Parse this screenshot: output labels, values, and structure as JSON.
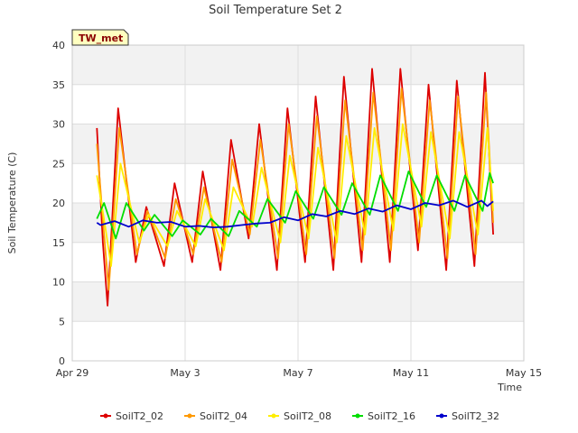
{
  "chart_data": {
    "type": "line",
    "title": "Soil Temperature Set 2",
    "xlabel": "Time",
    "ylabel": "Soil Temperature (C)",
    "site_label": "TW_met",
    "xlim": [
      "2024-04-29",
      "2024-05-15"
    ],
    "ylim": [
      0,
      40
    ],
    "yticks": [
      0,
      5,
      10,
      15,
      20,
      25,
      30,
      35,
      40
    ],
    "xticks": [
      {
        "date": "2024-04-29",
        "label": "Apr 29"
      },
      {
        "date": "2024-05-03",
        "label": "May 3"
      },
      {
        "date": "2024-05-07",
        "label": "May 7"
      },
      {
        "date": "2024-05-11",
        "label": "May 11"
      },
      {
        "date": "2024-05-15",
        "label": "May 15"
      }
    ],
    "grid": true,
    "legend_position": "bottom",
    "series": [
      {
        "name": "SoilT2_02",
        "color": "#dd0000",
        "points": [
          [
            "2024-04-29T21:00",
            29.5
          ],
          [
            "2024-04-30T02:00",
            15.0
          ],
          [
            "2024-04-30T06:00",
            7.0
          ],
          [
            "2024-04-30T15:00",
            32.0
          ],
          [
            "2024-05-01T06:00",
            12.5
          ],
          [
            "2024-05-01T15:00",
            19.5
          ],
          [
            "2024-05-02T06:00",
            12.0
          ],
          [
            "2024-05-02T15:00",
            22.5
          ],
          [
            "2024-05-03T06:00",
            12.5
          ],
          [
            "2024-05-03T15:00",
            24.0
          ],
          [
            "2024-05-04T06:00",
            11.5
          ],
          [
            "2024-05-04T15:00",
            28.0
          ],
          [
            "2024-05-05T06:00",
            15.5
          ],
          [
            "2024-05-05T15:00",
            30.0
          ],
          [
            "2024-05-06T06:00",
            11.5
          ],
          [
            "2024-05-06T15:00",
            32.0
          ],
          [
            "2024-05-07T06:00",
            12.5
          ],
          [
            "2024-05-07T15:00",
            33.5
          ],
          [
            "2024-05-08T06:00",
            11.5
          ],
          [
            "2024-05-08T15:00",
            36.0
          ],
          [
            "2024-05-09T06:00",
            12.5
          ],
          [
            "2024-05-09T15:00",
            37.0
          ],
          [
            "2024-05-10T06:00",
            12.5
          ],
          [
            "2024-05-10T15:00",
            37.0
          ],
          [
            "2024-05-11T06:00",
            14.0
          ],
          [
            "2024-05-11T15:00",
            35.0
          ],
          [
            "2024-05-12T06:00",
            11.5
          ],
          [
            "2024-05-12T15:00",
            35.5
          ],
          [
            "2024-05-13T06:00",
            12.0
          ],
          [
            "2024-05-13T15:00",
            36.5
          ],
          [
            "2024-05-13T22:00",
            16.0
          ]
        ]
      },
      {
        "name": "SoilT2_04",
        "color": "#ff9900",
        "points": [
          [
            "2024-04-29T21:00",
            27.5
          ],
          [
            "2024-04-30T03:00",
            16.0
          ],
          [
            "2024-04-30T07:00",
            9.0
          ],
          [
            "2024-04-30T16:00",
            29.5
          ],
          [
            "2024-05-01T07:00",
            13.5
          ],
          [
            "2024-05-01T16:00",
            19.0
          ],
          [
            "2024-05-02T07:00",
            13.0
          ],
          [
            "2024-05-02T16:00",
            20.5
          ],
          [
            "2024-05-03T07:00",
            13.5
          ],
          [
            "2024-05-03T16:00",
            22.0
          ],
          [
            "2024-05-04T07:00",
            12.5
          ],
          [
            "2024-05-04T16:00",
            25.5
          ],
          [
            "2024-05-05T07:00",
            16.0
          ],
          [
            "2024-05-05T16:00",
            28.0
          ],
          [
            "2024-05-06T07:00",
            13.0
          ],
          [
            "2024-05-06T16:00",
            30.0
          ],
          [
            "2024-05-07T07:00",
            13.5
          ],
          [
            "2024-05-07T16:00",
            31.0
          ],
          [
            "2024-05-08T07:00",
            13.0
          ],
          [
            "2024-05-08T16:00",
            33.0
          ],
          [
            "2024-05-09T07:00",
            14.0
          ],
          [
            "2024-05-09T16:00",
            34.0
          ],
          [
            "2024-05-10T07:00",
            14.0
          ],
          [
            "2024-05-10T16:00",
            34.5
          ],
          [
            "2024-05-11T07:00",
            15.0
          ],
          [
            "2024-05-11T16:00",
            33.0
          ],
          [
            "2024-05-12T07:00",
            13.0
          ],
          [
            "2024-05-12T16:00",
            33.5
          ],
          [
            "2024-05-13T07:00",
            13.5
          ],
          [
            "2024-05-13T16:00",
            34.0
          ],
          [
            "2024-05-13T22:00",
            17.5
          ]
        ]
      },
      {
        "name": "SoilT2_08",
        "color": "#ffee00",
        "points": [
          [
            "2024-04-29T21:00",
            23.5
          ],
          [
            "2024-04-30T04:00",
            17.0
          ],
          [
            "2024-04-30T09:00",
            12.0
          ],
          [
            "2024-04-30T17:00",
            25.0
          ],
          [
            "2024-05-01T09:00",
            15.0
          ],
          [
            "2024-05-01T17:00",
            18.5
          ],
          [
            "2024-05-02T09:00",
            14.5
          ],
          [
            "2024-05-02T17:00",
            19.0
          ],
          [
            "2024-05-03T09:00",
            14.5
          ],
          [
            "2024-05-03T17:00",
            20.5
          ],
          [
            "2024-05-04T09:00",
            14.0
          ],
          [
            "2024-05-04T17:00",
            22.0
          ],
          [
            "2024-05-05T09:00",
            17.0
          ],
          [
            "2024-05-05T17:00",
            24.5
          ],
          [
            "2024-05-06T09:00",
            15.0
          ],
          [
            "2024-05-06T17:00",
            26.0
          ],
          [
            "2024-05-07T09:00",
            15.5
          ],
          [
            "2024-05-07T17:00",
            27.0
          ],
          [
            "2024-05-08T09:00",
            15.0
          ],
          [
            "2024-05-08T17:00",
            28.5
          ],
          [
            "2024-05-09T09:00",
            16.0
          ],
          [
            "2024-05-09T17:00",
            29.5
          ],
          [
            "2024-05-10T09:00",
            16.5
          ],
          [
            "2024-05-10T17:00",
            30.0
          ],
          [
            "2024-05-11T09:00",
            17.0
          ],
          [
            "2024-05-11T17:00",
            29.0
          ],
          [
            "2024-05-12T09:00",
            15.5
          ],
          [
            "2024-05-12T17:00",
            29.0
          ],
          [
            "2024-05-13T09:00",
            16.0
          ],
          [
            "2024-05-13T17:00",
            29.5
          ],
          [
            "2024-05-13T22:00",
            19.0
          ]
        ]
      },
      {
        "name": "SoilT2_16",
        "color": "#00dd00",
        "points": [
          [
            "2024-04-29T21:00",
            18.0
          ],
          [
            "2024-04-30T03:00",
            20.0
          ],
          [
            "2024-04-30T13:00",
            15.5
          ],
          [
            "2024-04-30T22:00",
            20.0
          ],
          [
            "2024-05-01T13:00",
            16.5
          ],
          [
            "2024-05-01T22:00",
            18.5
          ],
          [
            "2024-05-02T13:00",
            15.8
          ],
          [
            "2024-05-02T22:00",
            17.8
          ],
          [
            "2024-05-03T13:00",
            16.0
          ],
          [
            "2024-05-03T22:00",
            18.0
          ],
          [
            "2024-05-04T13:00",
            15.8
          ],
          [
            "2024-05-04T22:00",
            19.0
          ],
          [
            "2024-05-05T13:00",
            17.0
          ],
          [
            "2024-05-05T22:00",
            20.5
          ],
          [
            "2024-05-06T13:00",
            17.5
          ],
          [
            "2024-05-06T22:00",
            21.5
          ],
          [
            "2024-05-07T13:00",
            18.0
          ],
          [
            "2024-05-07T22:00",
            22.0
          ],
          [
            "2024-05-08T13:00",
            18.5
          ],
          [
            "2024-05-08T22:00",
            22.5
          ],
          [
            "2024-05-09T13:00",
            18.5
          ],
          [
            "2024-05-09T22:00",
            23.5
          ],
          [
            "2024-05-10T13:00",
            19.0
          ],
          [
            "2024-05-10T22:00",
            24.0
          ],
          [
            "2024-05-11T13:00",
            19.5
          ],
          [
            "2024-05-11T22:00",
            23.5
          ],
          [
            "2024-05-12T13:00",
            19.0
          ],
          [
            "2024-05-12T22:00",
            23.5
          ],
          [
            "2024-05-13T13:00",
            19.0
          ],
          [
            "2024-05-13T19:00",
            23.8
          ],
          [
            "2024-05-13T22:00",
            22.5
          ]
        ]
      },
      {
        "name": "SoilT2_32",
        "color": "#0000cc",
        "points": [
          [
            "2024-04-29T21:00",
            17.5
          ],
          [
            "2024-04-30T00:00",
            17.2
          ],
          [
            "2024-04-30T12:00",
            17.7
          ],
          [
            "2024-05-01T00:00",
            17.0
          ],
          [
            "2024-05-01T12:00",
            17.8
          ],
          [
            "2024-05-02T00:00",
            17.5
          ],
          [
            "2024-05-02T12:00",
            17.6
          ],
          [
            "2024-05-03T00:00",
            17.0
          ],
          [
            "2024-05-03T12:00",
            17.1
          ],
          [
            "2024-05-04T00:00",
            16.9
          ],
          [
            "2024-05-04T12:00",
            17.0
          ],
          [
            "2024-05-05T00:00",
            17.2
          ],
          [
            "2024-05-05T12:00",
            17.4
          ],
          [
            "2024-05-06T00:00",
            17.5
          ],
          [
            "2024-05-06T12:00",
            18.2
          ],
          [
            "2024-05-07T00:00",
            17.8
          ],
          [
            "2024-05-07T12:00",
            18.6
          ],
          [
            "2024-05-08T00:00",
            18.3
          ],
          [
            "2024-05-08T12:00",
            19.0
          ],
          [
            "2024-05-09T00:00",
            18.6
          ],
          [
            "2024-05-09T12:00",
            19.3
          ],
          [
            "2024-05-10T00:00",
            18.9
          ],
          [
            "2024-05-10T12:00",
            19.7
          ],
          [
            "2024-05-11T00:00",
            19.2
          ],
          [
            "2024-05-11T12:00",
            20.0
          ],
          [
            "2024-05-12T00:00",
            19.7
          ],
          [
            "2024-05-12T12:00",
            20.3
          ],
          [
            "2024-05-13T00:00",
            19.5
          ],
          [
            "2024-05-13T12:00",
            20.3
          ],
          [
            "2024-05-13T17:00",
            19.6
          ],
          [
            "2024-05-13T22:00",
            20.2
          ]
        ]
      }
    ]
  }
}
